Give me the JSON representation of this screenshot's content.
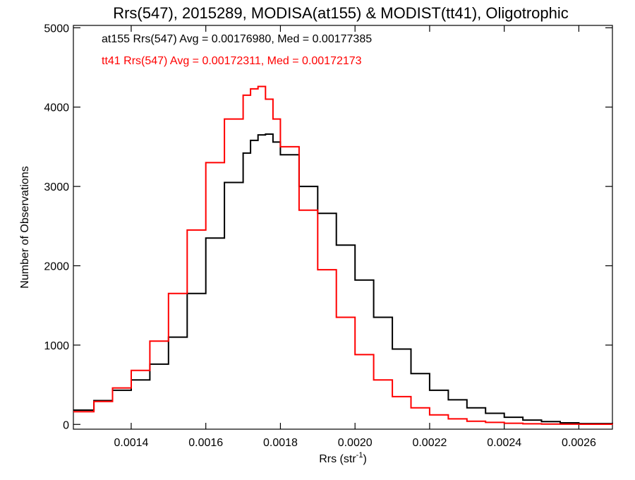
{
  "chart_data": {
    "type": "line",
    "title": "Rrs(547), 2015289, MODISA(at155) & MODIST(tt41), Oligotrophic",
    "xlabel_main": "Rrs (str",
    "xlabel_sup": "-1",
    "xlabel_close": ")",
    "ylabel": "Number of Observations",
    "xlim": [
      0.001245,
      0.00269
    ],
    "ylim": [
      -60,
      5030
    ],
    "xticks": [
      0.0014,
      0.0016,
      0.0018,
      0.002,
      0.0022,
      0.0024,
      0.0026
    ],
    "xtick_labels": [
      "0.0014",
      "0.0016",
      "0.0018",
      "0.0020",
      "0.0022",
      "0.0024",
      "0.0026"
    ],
    "yticks": [
      0,
      1000,
      2000,
      3000,
      4000,
      5000
    ],
    "ytick_labels": [
      "0",
      "1000",
      "2000",
      "3000",
      "4000",
      "5000"
    ],
    "step_style": "histogram-steps",
    "series": [
      {
        "name": "at155",
        "color": "#000000",
        "legend_text": "at155 Rrs(547) Avg = 0.00176980, Med = 0.00177385",
        "x": [
          0.001245,
          0.0013,
          0.00135,
          0.0014,
          0.00145,
          0.0015,
          0.00155,
          0.0016,
          0.00165,
          0.0017,
          0.00172,
          0.00174,
          0.00176,
          0.00178,
          0.0018,
          0.00185,
          0.0019,
          0.00195,
          0.002,
          0.00205,
          0.0021,
          0.00215,
          0.0022,
          0.00225,
          0.0023,
          0.00235,
          0.0024,
          0.00245,
          0.0025,
          0.00255,
          0.0026,
          0.00269
        ],
        "y": [
          180,
          300,
          430,
          560,
          760,
          1100,
          1650,
          2350,
          3050,
          3420,
          3580,
          3650,
          3660,
          3560,
          3400,
          3000,
          2660,
          2260,
          1820,
          1350,
          950,
          640,
          430,
          310,
          210,
          140,
          90,
          55,
          35,
          20,
          10,
          5
        ]
      },
      {
        "name": "tt41",
        "color": "#ff0000",
        "legend_text": "tt41 Rrs(547) Avg = 0.00172311, Med = 0.00172173",
        "x": [
          0.001245,
          0.0013,
          0.00135,
          0.0014,
          0.00145,
          0.0015,
          0.00155,
          0.0016,
          0.00165,
          0.0017,
          0.00172,
          0.00174,
          0.00176,
          0.00178,
          0.0018,
          0.00185,
          0.0019,
          0.00195,
          0.002,
          0.00205,
          0.0021,
          0.00215,
          0.0022,
          0.00225,
          0.0023,
          0.00235,
          0.0024,
          0.00245,
          0.0025,
          0.00255,
          0.0026,
          0.00269
        ],
        "y": [
          160,
          290,
          460,
          680,
          1050,
          1650,
          2450,
          3300,
          3850,
          4150,
          4230,
          4260,
          4100,
          3850,
          3500,
          2700,
          1950,
          1350,
          880,
          560,
          350,
          210,
          120,
          70,
          40,
          25,
          15,
          8,
          5,
          3,
          2,
          1
        ]
      }
    ]
  }
}
